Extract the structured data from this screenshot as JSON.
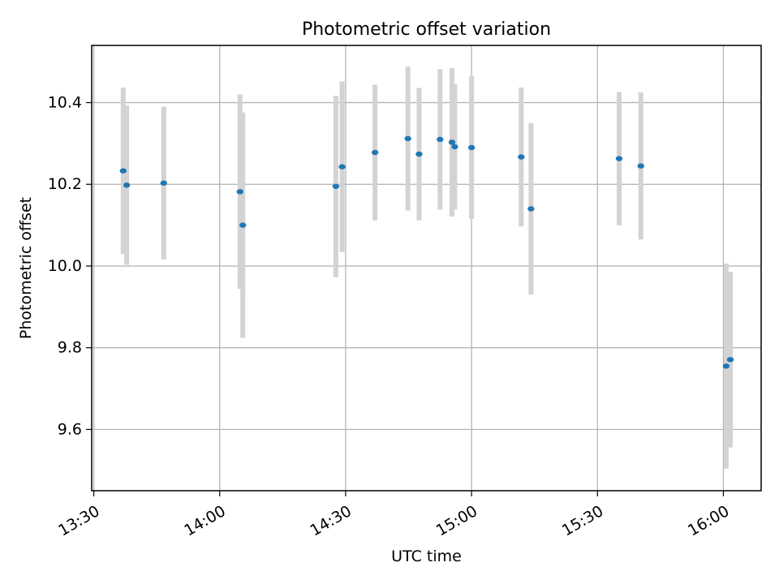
{
  "chart_data": {
    "type": "scatter",
    "title": "Photometric offset variation",
    "xlabel": "UTC time",
    "ylabel": "Photometric offset",
    "x_ticks": [
      "13:30",
      "14:00",
      "14:30",
      "15:00",
      "15:30",
      "16:00"
    ],
    "y_ticks": [
      "9.6",
      "9.8",
      "10.0",
      "10.2",
      "10.4"
    ],
    "xlim": [
      "13:29:30",
      "16:09:00"
    ],
    "ylim": [
      9.45,
      10.54
    ],
    "grid": true,
    "marker_color": "#1f77b4",
    "errorbar_color": "#d3d3d3",
    "series": [
      {
        "x": [
          "13:37:00",
          "13:37:50",
          "13:46:40",
          "14:04:50",
          "14:05:30",
          "14:27:40",
          "14:29:10",
          "14:37:00",
          "14:44:50",
          "14:47:30",
          "14:52:30",
          "14:55:20",
          "14:56:00",
          "15:00:00",
          "15:11:50",
          "15:14:10",
          "15:35:10",
          "15:40:20",
          "16:00:40",
          "16:01:40"
        ],
        "y": [
          10.233,
          10.198,
          10.203,
          10.182,
          10.1,
          10.195,
          10.243,
          10.278,
          10.312,
          10.274,
          10.31,
          10.303,
          10.292,
          10.29,
          10.267,
          10.14,
          10.263,
          10.245,
          9.755,
          9.771
        ],
        "yerr": [
          0.204,
          0.195,
          0.187,
          0.238,
          0.276,
          0.222,
          0.209,
          0.166,
          0.176,
          0.162,
          0.172,
          0.182,
          0.154,
          0.175,
          0.17,
          0.21,
          0.163,
          0.18,
          0.251,
          0.215
        ]
      }
    ]
  }
}
